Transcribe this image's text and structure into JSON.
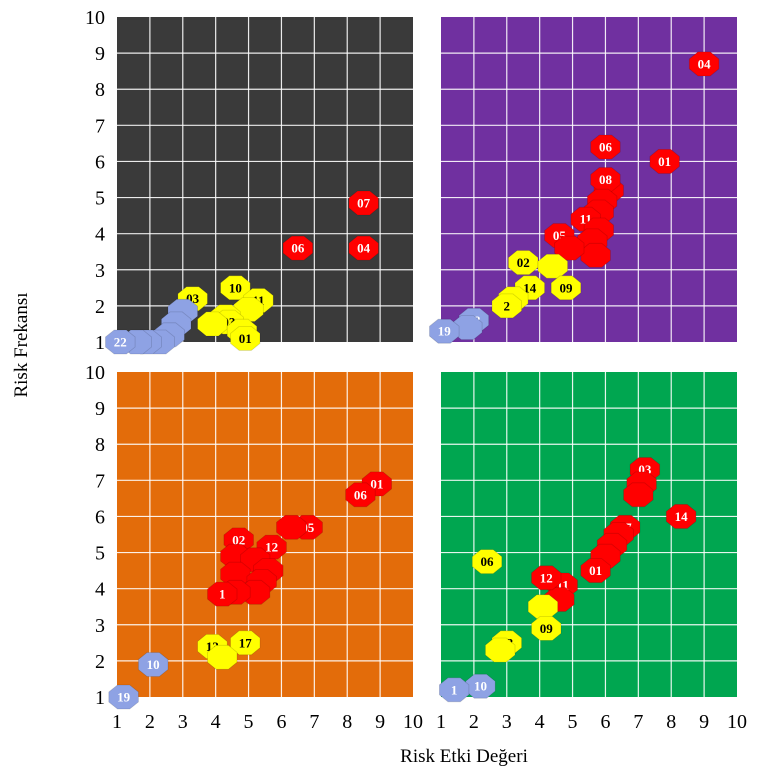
{
  "chart_data": {
    "type": "scatter",
    "xlabel": "Risk Etki Değeri",
    "ylabel": "Risk Frekansı",
    "xlim": [
      1,
      10
    ],
    "ylim": [
      1,
      10
    ],
    "x_ticks": [
      1,
      2,
      3,
      4,
      5,
      6,
      7,
      8,
      9,
      10
    ],
    "y_ticks": [
      1,
      2,
      3,
      4,
      5,
      6,
      7,
      8,
      9,
      10
    ],
    "grid": true,
    "colors": {
      "red": "#ff0000",
      "yellow": "#ffff00",
      "blue": "#8ea2e4"
    },
    "panels": [
      {
        "name": "top-left",
        "background": "#3a3a3a",
        "points": [
          {
            "label": "07",
            "x": 8.5,
            "y": 4.85,
            "color": "red"
          },
          {
            "label": "04",
            "x": 8.5,
            "y": 3.6,
            "color": "red"
          },
          {
            "label": "06",
            "x": 6.5,
            "y": 3.6,
            "color": "red"
          },
          {
            "label": "10",
            "x": 4.6,
            "y": 2.5,
            "color": "yellow"
          },
          {
            "label": "11",
            "x": 5.3,
            "y": 2.15,
            "color": "yellow"
          },
          {
            "label": "03",
            "x": 3.3,
            "y": 2.2,
            "color": "yellow"
          },
          {
            "label": "",
            "x": 5.0,
            "y": 1.9,
            "color": "yellow"
          },
          {
            "label": "",
            "x": 4.3,
            "y": 1.7,
            "color": "yellow"
          },
          {
            "label": "03",
            "x": 4.4,
            "y": 1.55,
            "color": "yellow"
          },
          {
            "label": "",
            "x": 3.9,
            "y": 1.5,
            "color": "yellow"
          },
          {
            "label": "",
            "x": 4.8,
            "y": 1.3,
            "color": "yellow"
          },
          {
            "label": "01",
            "x": 4.9,
            "y": 1.1,
            "color": "yellow"
          },
          {
            "label": "",
            "x": 3.0,
            "y": 1.85,
            "color": "blue"
          },
          {
            "label": "",
            "x": 2.8,
            "y": 1.5,
            "color": "blue"
          },
          {
            "label": "",
            "x": 2.6,
            "y": 1.2,
            "color": "blue"
          },
          {
            "label": "",
            "x": 2.3,
            "y": 1.0,
            "color": "blue"
          },
          {
            "label": "",
            "x": 1.9,
            "y": 1.0,
            "color": "blue"
          },
          {
            "label": "",
            "x": 1.6,
            "y": 1.0,
            "color": "blue"
          },
          {
            "label": "22",
            "x": 1.1,
            "y": 1.0,
            "color": "blue"
          }
        ]
      },
      {
        "name": "top-right",
        "background": "#7030a0",
        "points": [
          {
            "label": "04",
            "x": 9.0,
            "y": 8.7,
            "color": "red"
          },
          {
            "label": "01",
            "x": 7.8,
            "y": 6.0,
            "color": "red"
          },
          {
            "label": "06",
            "x": 6.0,
            "y": 6.4,
            "color": "red"
          },
          {
            "label": "",
            "x": 6.1,
            "y": 5.2,
            "color": "red"
          },
          {
            "label": "08",
            "x": 6.0,
            "y": 5.5,
            "color": "red"
          },
          {
            "label": "",
            "x": 5.9,
            "y": 4.9,
            "color": "red"
          },
          {
            "label": "",
            "x": 5.8,
            "y": 4.6,
            "color": "red"
          },
          {
            "label": "11",
            "x": 5.4,
            "y": 4.4,
            "color": "red"
          },
          {
            "label": "",
            "x": 5.8,
            "y": 4.1,
            "color": "red"
          },
          {
            "label": "",
            "x": 5.6,
            "y": 3.8,
            "color": "red"
          },
          {
            "label": "",
            "x": 5.7,
            "y": 3.4,
            "color": "red"
          },
          {
            "label": "05",
            "x": 4.6,
            "y": 3.95,
            "color": "red"
          },
          {
            "label": "",
            "x": 4.9,
            "y": 3.6,
            "color": "red"
          },
          {
            "label": "02",
            "x": 3.5,
            "y": 3.2,
            "color": "yellow"
          },
          {
            "label": "",
            "x": 4.4,
            "y": 3.1,
            "color": "yellow"
          },
          {
            "label": "14",
            "x": 3.7,
            "y": 2.5,
            "color": "yellow"
          },
          {
            "label": "09",
            "x": 4.8,
            "y": 2.5,
            "color": "yellow"
          },
          {
            "label": "",
            "x": 3.2,
            "y": 2.2,
            "color": "yellow"
          },
          {
            "label": "2",
            "x": 3.0,
            "y": 2.0,
            "color": "yellow"
          },
          {
            "label": "18",
            "x": 2.0,
            "y": 1.6,
            "color": "blue"
          },
          {
            "label": "",
            "x": 1.8,
            "y": 1.4,
            "color": "blue"
          },
          {
            "label": "19",
            "x": 1.1,
            "y": 1.3,
            "color": "blue"
          }
        ]
      },
      {
        "name": "bottom-left",
        "background": "#e36c0a",
        "points": [
          {
            "label": "01",
            "x": 8.9,
            "y": 6.9,
            "color": "red"
          },
          {
            "label": "06",
            "x": 8.4,
            "y": 6.6,
            "color": "red"
          },
          {
            "label": "05",
            "x": 6.8,
            "y": 5.7,
            "color": "red"
          },
          {
            "label": "",
            "x": 6.3,
            "y": 5.7,
            "color": "red"
          },
          {
            "label": "02",
            "x": 4.7,
            "y": 5.35,
            "color": "red"
          },
          {
            "label": "12",
            "x": 5.7,
            "y": 5.15,
            "color": "red"
          },
          {
            "label": "",
            "x": 4.6,
            "y": 4.9,
            "color": "red"
          },
          {
            "label": "",
            "x": 5.2,
            "y": 4.8,
            "color": "red"
          },
          {
            "label": "",
            "x": 5.6,
            "y": 4.5,
            "color": "red"
          },
          {
            "label": "",
            "x": 4.6,
            "y": 4.4,
            "color": "red"
          },
          {
            "label": "",
            "x": 5.4,
            "y": 4.2,
            "color": "red"
          },
          {
            "label": "",
            "x": 5.2,
            "y": 3.9,
            "color": "red"
          },
          {
            "label": "",
            "x": 4.6,
            "y": 3.9,
            "color": "red"
          },
          {
            "label": "1",
            "x": 4.2,
            "y": 3.85,
            "color": "red"
          },
          {
            "label": "13",
            "x": 3.9,
            "y": 2.4,
            "color": "yellow"
          },
          {
            "label": "17",
            "x": 4.9,
            "y": 2.5,
            "color": "yellow"
          },
          {
            "label": "",
            "x": 4.2,
            "y": 2.1,
            "color": "yellow"
          },
          {
            "label": "10",
            "x": 2.1,
            "y": 1.9,
            "color": "blue"
          },
          {
            "label": "19",
            "x": 1.2,
            "y": 1.0,
            "color": "blue"
          }
        ]
      },
      {
        "name": "bottom-right",
        "background": "#00a650",
        "points": [
          {
            "label": "03",
            "x": 7.2,
            "y": 7.3,
            "color": "red"
          },
          {
            "label": "",
            "x": 7.1,
            "y": 6.9,
            "color": "red"
          },
          {
            "label": "",
            "x": 7.0,
            "y": 6.6,
            "color": "red"
          },
          {
            "label": "14",
            "x": 8.3,
            "y": 6.0,
            "color": "red"
          },
          {
            "label": "17",
            "x": 6.6,
            "y": 5.7,
            "color": "red"
          },
          {
            "label": "",
            "x": 6.4,
            "y": 5.5,
            "color": "red"
          },
          {
            "label": "",
            "x": 6.2,
            "y": 5.2,
            "color": "red"
          },
          {
            "label": "",
            "x": 6.0,
            "y": 4.9,
            "color": "red"
          },
          {
            "label": "01",
            "x": 5.7,
            "y": 4.5,
            "color": "red"
          },
          {
            "label": "11",
            "x": 4.7,
            "y": 4.1,
            "color": "red"
          },
          {
            "label": "",
            "x": 4.6,
            "y": 3.7,
            "color": "red"
          },
          {
            "label": "12",
            "x": 4.2,
            "y": 4.3,
            "color": "red"
          },
          {
            "label": "06",
            "x": 2.4,
            "y": 4.75,
            "color": "yellow"
          },
          {
            "label": "",
            "x": 4.1,
            "y": 3.5,
            "color": "yellow"
          },
          {
            "label": "09",
            "x": 4.2,
            "y": 2.9,
            "color": "yellow"
          },
          {
            "label": "03",
            "x": 3.0,
            "y": 2.5,
            "color": "yellow"
          },
          {
            "label": "",
            "x": 2.8,
            "y": 2.3,
            "color": "yellow"
          },
          {
            "label": "10",
            "x": 2.2,
            "y": 1.3,
            "color": "blue"
          },
          {
            "label": "1",
            "x": 1.4,
            "y": 1.2,
            "color": "blue"
          }
        ]
      }
    ]
  }
}
